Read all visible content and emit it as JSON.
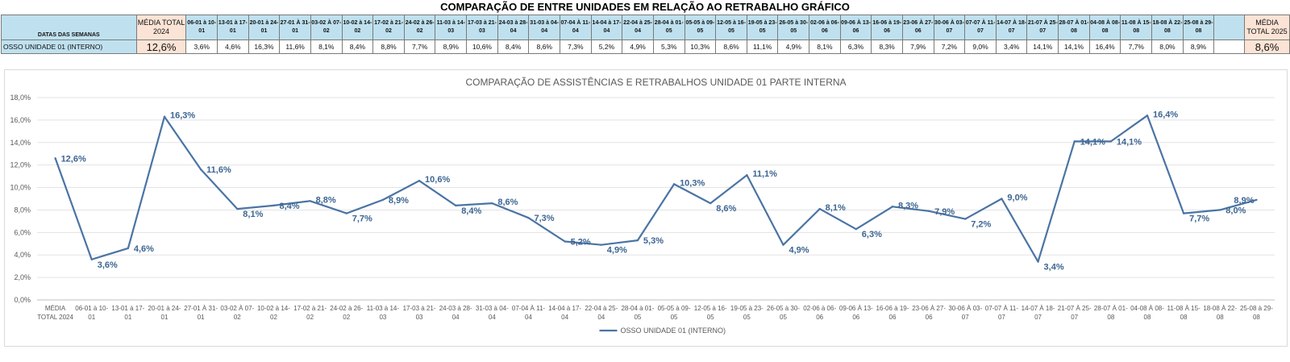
{
  "table": {
    "title": "COMPARAÇÃO DE ENTRE UNIDADES EM RELAÇÃO AO RETRABALHO GRÁFICO",
    "row_header_label": "DATAS DAS SEMANAS",
    "avg_2024_label": "MÉDIA TOTAL 2024",
    "avg_2025_label": "MÉDIA TOTAL 2025",
    "weeks": [
      "06-01 à 10-01",
      "13-01 à 17-01",
      "20-01 à 24-01",
      "27-01 À 31-01",
      "03-02 À 07-02",
      "10-02 à 14-02",
      "17-02 à 21-02",
      "24-02 à 26-02",
      "11-03 à 14-03",
      "17-03 à 21-03",
      "24-03 à 28-04",
      "31-03 à 04-04",
      "07-04 À 11-04",
      "14-04 à 17-04",
      "22-04 à 25-04",
      "28-04 à 01-05",
      "05-05 à 09-05",
      "12-05 à 16-05",
      "19-05 à 23-05",
      "26-05 à 30-05",
      "02-06 à 06-06",
      "09-06 À 13-06",
      "16-06 à 19-06",
      "23-06 À 27-06",
      "30-06 À 03-07",
      "07-07 À 11-07",
      "14-07 À 18-07",
      "21-07 À 25-07",
      "28-07 À 01-08",
      "04-08 À 08-08",
      "11-08 À 15-08",
      "18-08 À 22-08",
      "25-08 à 29-08"
    ],
    "row_label": "OSSO UNIDADE 01 (INTERNO)",
    "avg_2024_value": "12,6%",
    "avg_2025_value": "8,6%",
    "values": [
      "3,6%",
      "4,6%",
      "16,3%",
      "11,6%",
      "8,1%",
      "8,4%",
      "8,8%",
      "7,7%",
      "8,9%",
      "10,6%",
      "8,4%",
      "8,6%",
      "7,3%",
      "5,2%",
      "4,9%",
      "5,3%",
      "10,3%",
      "8,6%",
      "11,1%",
      "4,9%",
      "8,1%",
      "6,3%",
      "8,3%",
      "7,9%",
      "7,2%",
      "9,0%",
      "3,4%",
      "14,1%",
      "14,1%",
      "16,4%",
      "7,7%",
      "8,0%",
      "8,9%"
    ]
  },
  "chart_data": {
    "type": "line",
    "title": "COMPARAÇÃO DE ASSISTÊNCIAS E RETRABALHOS UNIDADE 01 PARTE INTERNA",
    "categories": [
      [
        "MÉDIA",
        "TOTAL 2024"
      ],
      [
        "06-01 à 10-",
        "01"
      ],
      [
        "13-01 à 17-",
        "01"
      ],
      [
        "20-01 à 24-",
        "01"
      ],
      [
        "27-01 À 31-",
        "01"
      ],
      [
        "03-02 À 07-",
        "02"
      ],
      [
        "10-02 à 14-",
        "02"
      ],
      [
        "17-02 à 21-",
        "02"
      ],
      [
        "24-02 à 26-",
        "02"
      ],
      [
        "11-03 à 14-",
        "03"
      ],
      [
        "17-03 à 21-",
        "03"
      ],
      [
        "24-03 à 28-",
        "04"
      ],
      [
        "31-03 à 04-",
        "04"
      ],
      [
        "07-04 À 11-",
        "04"
      ],
      [
        "14-04 à 17-",
        "04"
      ],
      [
        "22-04 à 25-",
        "04"
      ],
      [
        "28-04 à 01-",
        "05"
      ],
      [
        "05-05 à 09-",
        "05"
      ],
      [
        "12-05 à 16-",
        "05"
      ],
      [
        "19-05 à 23-",
        "05"
      ],
      [
        "26-05 à 30-",
        "05"
      ],
      [
        "02-06 à 06-",
        "06"
      ],
      [
        "09-06 À 13-",
        "06"
      ],
      [
        "16-06 à 19-",
        "06"
      ],
      [
        "23-06 À 27-",
        "06"
      ],
      [
        "30-06 À 03-",
        "07"
      ],
      [
        "07-07 À 11-",
        "07"
      ],
      [
        "14-07 À 18-",
        "07"
      ],
      [
        "21-07 À 25-",
        "07"
      ],
      [
        "28-07 À 01-",
        "08"
      ],
      [
        "04-08 À 08-",
        "08"
      ],
      [
        "11-08 À 15-",
        "08"
      ],
      [
        "18-08 À 22-",
        "08"
      ],
      [
        "25-08 à 29-",
        "08"
      ]
    ],
    "series": [
      {
        "name": "OSSO UNIDADE 01 (INTERNO)",
        "values": [
          12.6,
          3.6,
          4.6,
          16.3,
          11.6,
          8.1,
          8.4,
          8.8,
          7.7,
          8.9,
          10.6,
          8.4,
          8.6,
          7.3,
          5.2,
          4.9,
          5.3,
          10.3,
          8.6,
          11.1,
          4.9,
          8.1,
          6.3,
          8.3,
          7.9,
          7.2,
          9.0,
          3.4,
          14.1,
          14.1,
          16.4,
          7.7,
          8.0,
          8.9
        ],
        "data_labels": [
          "12,6%",
          "3,6%",
          "4,6%",
          "16,3%",
          "11,6%",
          "8,1%",
          "8,4%",
          "8,8%",
          "7,7%",
          "8,9%",
          "10,6%",
          "8,4%",
          "8,6%",
          "7,3%",
          "5,2%",
          "4,9%",
          "5,3%",
          "10,3%",
          "8,6%",
          "11,1%",
          "4,9%",
          "8,1%",
          "6,3%",
          "8,3%",
          "7,9%",
          "7,2%",
          "9,0%",
          "3,4%",
          "14,1%",
          "14,1%",
          "16,4%",
          "7,7%",
          "8,0%",
          "8,9%"
        ]
      }
    ],
    "ylim": [
      0,
      18
    ],
    "y_ticks": [
      "0,0%",
      "2,0%",
      "4,0%",
      "6,0%",
      "8,0%",
      "10,0%",
      "12,0%",
      "14,0%",
      "16,0%",
      "18,0%"
    ],
    "grid": true,
    "legend": "bottom",
    "colors": {
      "line": "#4a74a4",
      "label": "#3d6592",
      "grid": "#e3e3e3",
      "axis_text": "#595959"
    }
  }
}
